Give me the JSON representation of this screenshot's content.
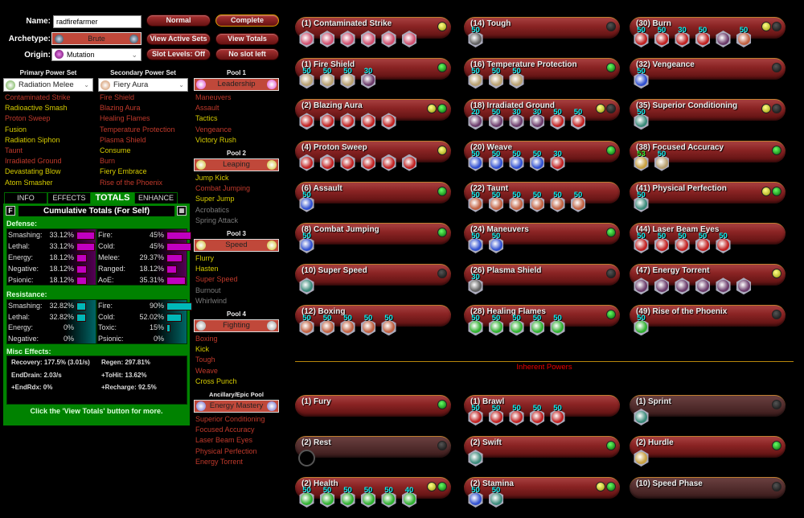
{
  "colors": {
    "taken": "#c0392b",
    "available": "#d6cc00",
    "unavailable": "#7a7a7a",
    "defense_bar": "#c000c0",
    "resistance_bar": "#00b8b8",
    "panel_green": "#008200",
    "accent_red": "#c0483a"
  },
  "header": {
    "name_label": "Name:",
    "name_value": "radfirefarmer",
    "archetype_label": "Archetype:",
    "archetype_value": "Brute",
    "origin_label": "Origin:",
    "origin_value": "Mutation",
    "buttons": [
      "Normal",
      "Complete",
      "View Active Sets",
      "View Totals",
      "Slot Levels: Off",
      "No slot left"
    ]
  },
  "sets": [
    {
      "heading": "Primary Power Set",
      "name": "Radiation Melee",
      "icon": "radiation-icon",
      "powers": [
        [
          "Contaminated Strike",
          "taken"
        ],
        [
          "Radioactive Smash",
          "available"
        ],
        [
          "Proton Sweep",
          "taken"
        ],
        [
          "Fusion",
          "available"
        ],
        [
          "Radiation Siphon",
          "available"
        ],
        [
          "Taunt",
          "taken"
        ],
        [
          "Irradiated Ground",
          "taken"
        ],
        [
          "Devastating Blow",
          "available"
        ],
        [
          "Atom Smasher",
          "available"
        ]
      ]
    },
    {
      "heading": "Secondary Power Set",
      "name": "Fiery Aura",
      "icon": "fire-icon",
      "powers": [
        [
          "Fire Shield",
          "taken"
        ],
        [
          "Blazing Aura",
          "taken"
        ],
        [
          "Healing Flames",
          "taken"
        ],
        [
          "Temperature Protection",
          "taken"
        ],
        [
          "Plasma Shield",
          "taken"
        ],
        [
          "Consume",
          "available"
        ],
        [
          "Burn",
          "taken"
        ],
        [
          "Fiery Embrace",
          "available"
        ],
        [
          "Rise of the Phoenix",
          "taken"
        ]
      ]
    }
  ],
  "pools": [
    {
      "heading": "Pool 1",
      "name": "Leadership",
      "icon": "leadership-icon",
      "powers": [
        [
          "Maneuvers",
          "taken"
        ],
        [
          "Assault",
          "taken"
        ],
        [
          "Tactics",
          "available"
        ],
        [
          "Vengeance",
          "taken"
        ],
        [
          "Victory Rush",
          "available"
        ]
      ]
    },
    {
      "heading": "Pool 2",
      "name": "Leaping",
      "icon": "leaping-icon",
      "powers": [
        [
          "Jump Kick",
          "available"
        ],
        [
          "Combat Jumping",
          "taken"
        ],
        [
          "Super Jump",
          "available"
        ],
        [
          "Acrobatics",
          "unavailable"
        ],
        [
          "Spring Attack",
          "unavailable"
        ]
      ]
    },
    {
      "heading": "Pool 3",
      "name": "Speed",
      "icon": "speed-icon",
      "powers": [
        [
          "Flurry",
          "available"
        ],
        [
          "Hasten",
          "available"
        ],
        [
          "Super Speed",
          "taken"
        ],
        [
          "Burnout",
          "unavailable"
        ],
        [
          "Whirlwind",
          "unavailable"
        ]
      ]
    },
    {
      "heading": "Pool 4",
      "name": "Fighting",
      "icon": "fighting-icon",
      "powers": [
        [
          "Boxing",
          "taken"
        ],
        [
          "Kick",
          "available"
        ],
        [
          "Tough",
          "taken"
        ],
        [
          "Weave",
          "taken"
        ],
        [
          "Cross Punch",
          "available"
        ]
      ]
    },
    {
      "heading": "Ancillary/Epic Pool",
      "name": "Energy Mastery",
      "icon": "energy-mastery-icon",
      "powers": [
        [
          "Superior Conditioning",
          "taken"
        ],
        [
          "Focused Accuracy",
          "taken"
        ],
        [
          "Laser Beam Eyes",
          "taken"
        ],
        [
          "Physical Perfection",
          "taken"
        ],
        [
          "Energy Torrent",
          "taken"
        ]
      ]
    }
  ],
  "tabs": [
    "INFO",
    "EFFECTS",
    "TOTALS",
    "ENHANCE"
  ],
  "active_tab": "TOTALS",
  "totals": {
    "title": "Cumulative Totals (For Self)",
    "f_button": "F",
    "defense_label": "Defense:",
    "resistance_label": "Resistance:",
    "misc_label": "Misc Effects:",
    "defense": [
      [
        "Smashing:",
        "33.12%",
        33.12
      ],
      [
        "Lethal:",
        "33.12%",
        33.12
      ],
      [
        "Energy:",
        "18.12%",
        18.12
      ],
      [
        "Negative:",
        "18.12%",
        18.12
      ],
      [
        "Psionic:",
        "18.12%",
        18.12
      ],
      [
        "Fire:",
        "45%",
        45
      ],
      [
        "Cold:",
        "45%",
        45
      ],
      [
        "Melee:",
        "29.37%",
        29.37
      ],
      [
        "Ranged:",
        "18.12%",
        18.12
      ],
      [
        "AoE:",
        "35.31%",
        35.31
      ]
    ],
    "resistance": [
      [
        "Smashing:",
        "32.82%",
        32.82
      ],
      [
        "Lethal:",
        "32.82%",
        32.82
      ],
      [
        "Energy:",
        "0%",
        0
      ],
      [
        "Negative:",
        "0%",
        0
      ],
      [
        "Fire:",
        "90%",
        90
      ],
      [
        "Cold:",
        "52.02%",
        52.02
      ],
      [
        "Toxic:",
        "15%",
        15
      ],
      [
        "Psionic:",
        "0%",
        0
      ]
    ],
    "misc": [
      "Recovery: 177.5% (3.01/s)",
      "Regen: 297.81%",
      "EndDrain: 2.03/s",
      "+ToHit: 13.62%",
      "+EndRdx: 0%",
      "+Recharge: 92.5%"
    ],
    "footer": "Click the 'View Totals' button for more."
  },
  "inherent_title": "Inherent Powers",
  "slot_colors": {
    "p": "#d05070",
    "s": "#b8a070",
    "r": "#c02020",
    "b": "#3050d0",
    "g": "#30b030",
    "gr": "#606060",
    "t": "#3a8a7a",
    "o": "#c06040",
    "pu": "#6a3a6a",
    "gd": "#c8a040",
    "e": "#000"
  },
  "powers": [
    {
      "label": "(1) Contaminated Strike",
      "dots": [
        "y"
      ],
      "slots": [
        [
          "",
          "p"
        ],
        [
          "",
          "p"
        ],
        [
          "",
          "p"
        ],
        [
          "",
          "p"
        ],
        [
          "",
          "p"
        ],
        [
          "",
          "p"
        ]
      ]
    },
    {
      "label": "(1) Fire Shield",
      "dots": [
        "g"
      ],
      "slots": [
        [
          "50",
          "s"
        ],
        [
          "50",
          "s"
        ],
        [
          "50",
          "s"
        ],
        [
          "30",
          "pu"
        ]
      ]
    },
    {
      "label": "(2) Blazing Aura",
      "dots": [
        "y",
        "g"
      ],
      "slots": [
        [
          "",
          "r"
        ],
        [
          "",
          "r"
        ],
        [
          "",
          "r"
        ],
        [
          "",
          "r"
        ],
        [
          "",
          "r"
        ]
      ]
    },
    {
      "label": "(4) Proton Sweep",
      "dots": [
        "y"
      ],
      "slots": [
        [
          "",
          "r"
        ],
        [
          "",
          "r"
        ],
        [
          "",
          "r"
        ],
        [
          "",
          "r"
        ],
        [
          "",
          "r"
        ],
        [
          "",
          "r"
        ]
      ]
    },
    {
      "label": "(6) Assault",
      "dots": [
        "g"
      ],
      "slots": [
        [
          "50",
          "b"
        ]
      ]
    },
    {
      "label": "(8) Combat Jumping",
      "dots": [
        "g"
      ],
      "slots": [
        [
          "50",
          "b"
        ]
      ]
    },
    {
      "label": "(10) Super Speed",
      "dots": [
        "k"
      ],
      "slots": [
        [
          "",
          "t"
        ]
      ]
    },
    {
      "label": "(12) Boxing",
      "dots": [],
      "slots": [
        [
          "50",
          "o"
        ],
        [
          "50",
          "o"
        ],
        [
          "50",
          "o"
        ],
        [
          "50",
          "o"
        ],
        [
          "50",
          "o"
        ]
      ]
    },
    {
      "label": "(14) Tough",
      "dots": [
        "k"
      ],
      "slots": [
        [
          "50",
          "gr"
        ]
      ]
    },
    {
      "label": "(16) Temperature Protection",
      "dots": [
        "g"
      ],
      "slots": [
        [
          "50",
          "s"
        ],
        [
          "50",
          "s"
        ],
        [
          "50",
          "s"
        ]
      ]
    },
    {
      "label": "(18) Irradiated Ground",
      "dots": [
        "y",
        "k"
      ],
      "slots": [
        [
          "20",
          "pu"
        ],
        [
          "50",
          "pu"
        ],
        [
          "30",
          "pu"
        ],
        [
          "30",
          "pu"
        ],
        [
          "50",
          "r"
        ],
        [
          "50",
          "r"
        ]
      ]
    },
    {
      "label": "(20) Weave",
      "dots": [
        "g"
      ],
      "slots": [
        [
          "50",
          "b"
        ],
        [
          "50",
          "b"
        ],
        [
          "50",
          "b"
        ],
        [
          "50",
          "b"
        ],
        [
          "30",
          "r"
        ]
      ]
    },
    {
      "label": "(22) Taunt",
      "dots": [],
      "slots": [
        [
          "50",
          "o"
        ],
        [
          "50",
          "o"
        ],
        [
          "50",
          "o"
        ],
        [
          "50",
          "o"
        ],
        [
          "50",
          "o"
        ],
        [
          "50",
          "o"
        ]
      ]
    },
    {
      "label": "(24) Maneuvers",
      "dots": [
        "g"
      ],
      "slots": [
        [
          "50",
          "b"
        ],
        [
          "50",
          "b"
        ]
      ]
    },
    {
      "label": "(26) Plasma Shield",
      "dots": [
        "k"
      ],
      "slots": [
        [
          "30",
          "gr"
        ]
      ]
    },
    {
      "label": "(28) Healing Flames",
      "dots": [
        "g"
      ],
      "slots": [
        [
          "50",
          "g"
        ],
        [
          "50",
          "g"
        ],
        [
          "50",
          "g"
        ],
        [
          "50",
          "g"
        ],
        [
          "50",
          "g"
        ]
      ]
    },
    {
      "label": "(30) Burn",
      "dots": [
        "y",
        "k"
      ],
      "slots": [
        [
          "50",
          "r"
        ],
        [
          "50",
          "r"
        ],
        [
          "30",
          "r"
        ],
        [
          "50",
          "r"
        ],
        [
          "",
          "pu"
        ],
        [
          "50",
          "o"
        ]
      ]
    },
    {
      "label": "(32) Vengeance",
      "dots": [
        "k"
      ],
      "slots": [
        [
          "50",
          "b"
        ]
      ]
    },
    {
      "label": "(35) Superior Conditioning",
      "dots": [
        "y",
        "k"
      ],
      "slots": [
        [
          "50",
          "t"
        ]
      ]
    },
    {
      "label": "(38) Focused Accuracy",
      "dots": [
        "g"
      ],
      "slots": [
        [
          "53",
          "gd"
        ],
        [
          "50",
          "s"
        ]
      ]
    },
    {
      "label": "(41) Physical Perfection",
      "dots": [
        "y",
        "g"
      ],
      "slots": [
        [
          "50",
          "t"
        ]
      ]
    },
    {
      "label": "(44) Laser Beam Eyes",
      "dots": [],
      "slots": [
        [
          "50",
          "r"
        ],
        [
          "50",
          "r"
        ],
        [
          "50",
          "r"
        ],
        [
          "50",
          "r"
        ],
        [
          "50",
          "r"
        ]
      ]
    },
    {
      "label": "(47) Energy Torrent",
      "dots": [
        "y"
      ],
      "slots": [
        [
          "",
          "pu"
        ],
        [
          "",
          "pu"
        ],
        [
          "",
          "pu"
        ],
        [
          "",
          "pu"
        ],
        [
          "",
          "pu"
        ],
        [
          "",
          "pu"
        ]
      ]
    },
    {
      "label": "(49) Rise of the Phoenix",
      "dots": [
        "k"
      ],
      "slots": [
        [
          "50",
          "g"
        ]
      ]
    }
  ],
  "inherent": [
    {
      "label": "(1) Fury",
      "dots": [
        "g"
      ],
      "slots": []
    },
    {
      "label": "(2) Rest",
      "dots": [
        "k"
      ],
      "slots": [
        [
          "",
          "e"
        ]
      ],
      "dim": true
    },
    {
      "label": "(2) Health",
      "dots": [
        "y",
        "g"
      ],
      "slots": [
        [
          "50",
          "g"
        ],
        [
          "50",
          "g"
        ],
        [
          "50",
          "g"
        ],
        [
          "50",
          "g"
        ],
        [
          "50",
          "g"
        ],
        [
          "40",
          "g"
        ]
      ]
    },
    {
      "label": "(1) Brawl",
      "dots": [],
      "slots": [
        [
          "50",
          "r"
        ],
        [
          "50",
          "r"
        ],
        [
          "50",
          "r"
        ],
        [
          "50",
          "r"
        ],
        [
          "50",
          "r"
        ]
      ]
    },
    {
      "label": "(2) Swift",
      "dots": [
        "g"
      ],
      "slots": [
        [
          "",
          "t"
        ]
      ]
    },
    {
      "label": "(2) Stamina",
      "dots": [
        "y",
        "g"
      ],
      "slots": [
        [
          "50",
          "b"
        ],
        [
          "50",
          "t"
        ]
      ]
    },
    {
      "label": "(1) Sprint",
      "dots": [
        "k"
      ],
      "slots": [
        [
          "",
          "t"
        ]
      ],
      "dim": true
    },
    {
      "label": "(2) Hurdle",
      "dots": [
        "g"
      ],
      "slots": [
        [
          "",
          "gd"
        ]
      ]
    },
    {
      "label": "(10) Speed Phase",
      "dots": [
        "k"
      ],
      "slots": [],
      "dim": true
    }
  ]
}
